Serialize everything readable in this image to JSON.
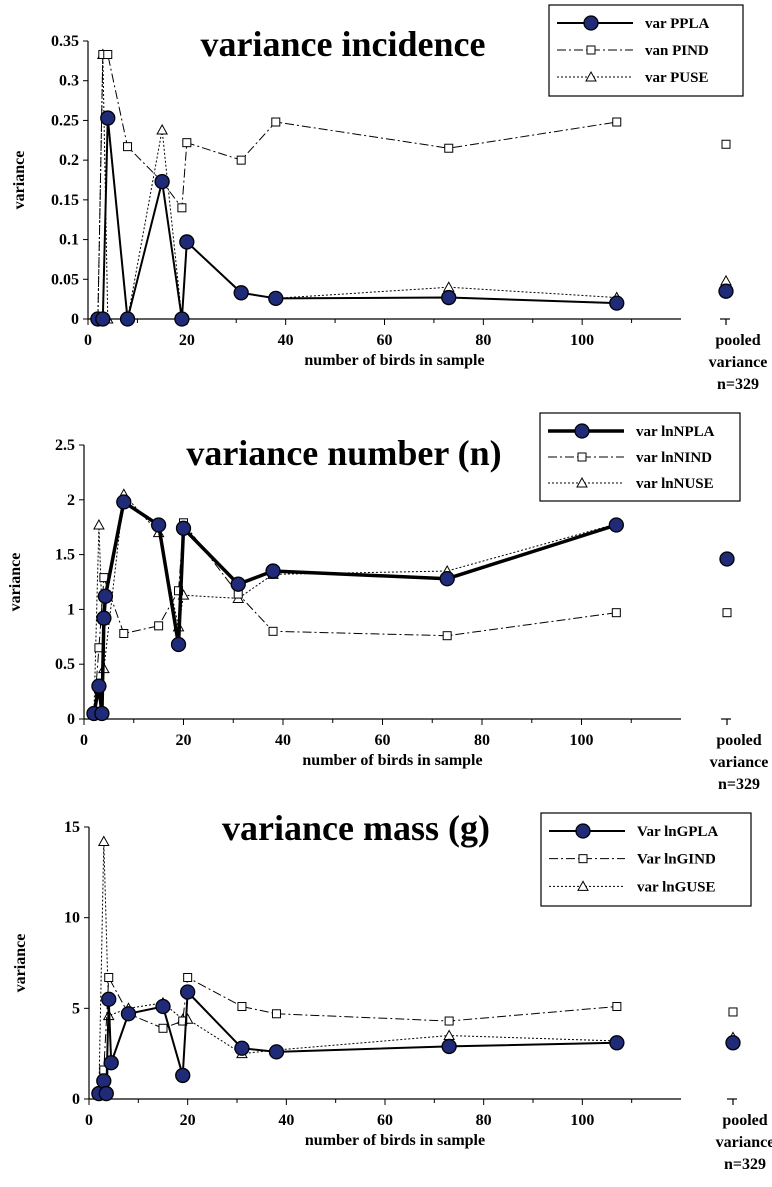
{
  "chart_data": [
    {
      "type": "line",
      "title": "variance incidence",
      "xlabel": "number of birds in sample",
      "ylabel": "variance",
      "xlim": [
        0,
        120
      ],
      "ylim": [
        0,
        0.35
      ],
      "xticks": [
        "0",
        "20",
        "40",
        "60",
        "80",
        "100"
      ],
      "yticks": [
        "0",
        "0.05",
        "0.1",
        "0.15",
        "0.2",
        "0.25",
        "0.3",
        "0.35"
      ],
      "pooled_label": [
        "pooled",
        "variance",
        "n=329"
      ],
      "legend_position": "top-right",
      "series": [
        {
          "name": "var PPLA",
          "style": "solid-circle",
          "x": [
            2,
            3,
            4,
            8,
            15,
            19,
            20,
            31,
            38,
            73,
            107
          ],
          "y": [
            0,
            0,
            0.253,
            0,
            0.173,
            0,
            0.097,
            0.033,
            0.026,
            0.027,
            0.02
          ],
          "pooled": 0.035
        },
        {
          "name": "van PIND",
          "style": "dashdot-square",
          "x": [
            2,
            3,
            4,
            8,
            15,
            19,
            20,
            31,
            38,
            73,
            107
          ],
          "y": [
            0,
            0.333,
            0.333,
            0.217,
            0.173,
            0.14,
            0.222,
            0.2,
            0.248,
            0.215,
            0.248
          ],
          "pooled": 0.22
        },
        {
          "name": "var PUSE",
          "style": "dotted-triangle",
          "x": [
            2,
            3,
            4,
            8,
            15,
            19,
            20,
            31,
            38,
            73,
            107
          ],
          "y": [
            0,
            0.333,
            0,
            0,
            0.238,
            0,
            0.097,
            0.033,
            0.026,
            0.04,
            0.027
          ],
          "pooled": 0.048
        }
      ]
    },
    {
      "type": "line",
      "title": "variance number (n)",
      "xlabel": "number of birds in sample",
      "ylabel": "variance",
      "xlim": [
        0,
        120
      ],
      "ylim": [
        0,
        2.5
      ],
      "xticks": [
        "0",
        "20",
        "40",
        "60",
        "80",
        "100"
      ],
      "yticks": [
        "0",
        "0.5",
        "1",
        "1.5",
        "2",
        "2.5"
      ],
      "pooled_label": [
        "pooled",
        "variance",
        "n=329"
      ],
      "legend_position": "top-right",
      "series": [
        {
          "name": "var lnNPLA",
          "style": "thick-circle",
          "x": [
            2,
            3,
            3.6,
            4,
            4.3,
            8,
            15,
            19,
            20,
            31,
            38,
            73,
            107
          ],
          "y": [
            0.05,
            0.3,
            0.05,
            0.92,
            1.12,
            1.98,
            1.77,
            0.68,
            1.74,
            1.23,
            1.35,
            1.28,
            1.77
          ],
          "pooled": 1.46
        },
        {
          "name": "var lnNIND",
          "style": "dashdot-square",
          "x": [
            2,
            3,
            4,
            8,
            15,
            19,
            20,
            31,
            38,
            73,
            107
          ],
          "y": [
            0.05,
            0.65,
            1.29,
            0.78,
            0.85,
            1.17,
            1.79,
            1.14,
            0.8,
            0.76,
            0.97
          ],
          "pooled": 0.97
        },
        {
          "name": "var lnNUSE",
          "style": "dotted-triangle",
          "x": [
            2,
            3,
            4,
            8,
            15,
            19,
            20,
            31,
            38,
            73,
            107
          ],
          "y": [
            0.05,
            1.77,
            0.46,
            2.05,
            1.7,
            0.84,
            1.13,
            1.1,
            1.32,
            1.35,
            1.78
          ],
          "pooled": 1.46
        }
      ]
    },
    {
      "type": "line",
      "title": "variance mass (g)",
      "xlabel": "number of birds in sample",
      "ylabel": "variance",
      "xlim": [
        0,
        120
      ],
      "ylim": [
        0,
        15
      ],
      "xticks": [
        "0",
        "20",
        "40",
        "60",
        "80",
        "100"
      ],
      "yticks": [
        "0",
        "5",
        "10",
        "15"
      ],
      "pooled_label": [
        "pooled",
        "variance",
        "n=329"
      ],
      "legend_position": "top-right",
      "series": [
        {
          "name": "Var lnGPLA",
          "style": "solid-circle",
          "x": [
            2,
            3,
            3.5,
            4,
            4.5,
            8,
            15,
            19,
            20,
            31,
            38,
            73,
            107
          ],
          "y": [
            0.3,
            1,
            0.3,
            5.5,
            2,
            4.7,
            5.1,
            1.3,
            5.9,
            2.8,
            2.6,
            2.9,
            3.1
          ],
          "pooled": 3.1
        },
        {
          "name": "Var lnGIND",
          "style": "dashdot-square",
          "x": [
            2,
            3,
            4,
            8,
            15,
            19,
            20,
            31,
            38,
            73,
            107
          ],
          "y": [
            0.3,
            1.6,
            6.7,
            4.7,
            3.9,
            4.3,
            6.7,
            5.1,
            4.7,
            4.3,
            5.1
          ],
          "pooled": 4.8
        },
        {
          "name": "var lnGUSE",
          "style": "dotted-triangle",
          "x": [
            2,
            3,
            4,
            8,
            15,
            19,
            20,
            31,
            38,
            73,
            107
          ],
          "y": [
            0.3,
            14.2,
            4.6,
            5,
            5.3,
            4.4,
            4.4,
            2.5,
            2.7,
            3.5,
            3.2
          ],
          "pooled": 3.4
        }
      ]
    }
  ]
}
